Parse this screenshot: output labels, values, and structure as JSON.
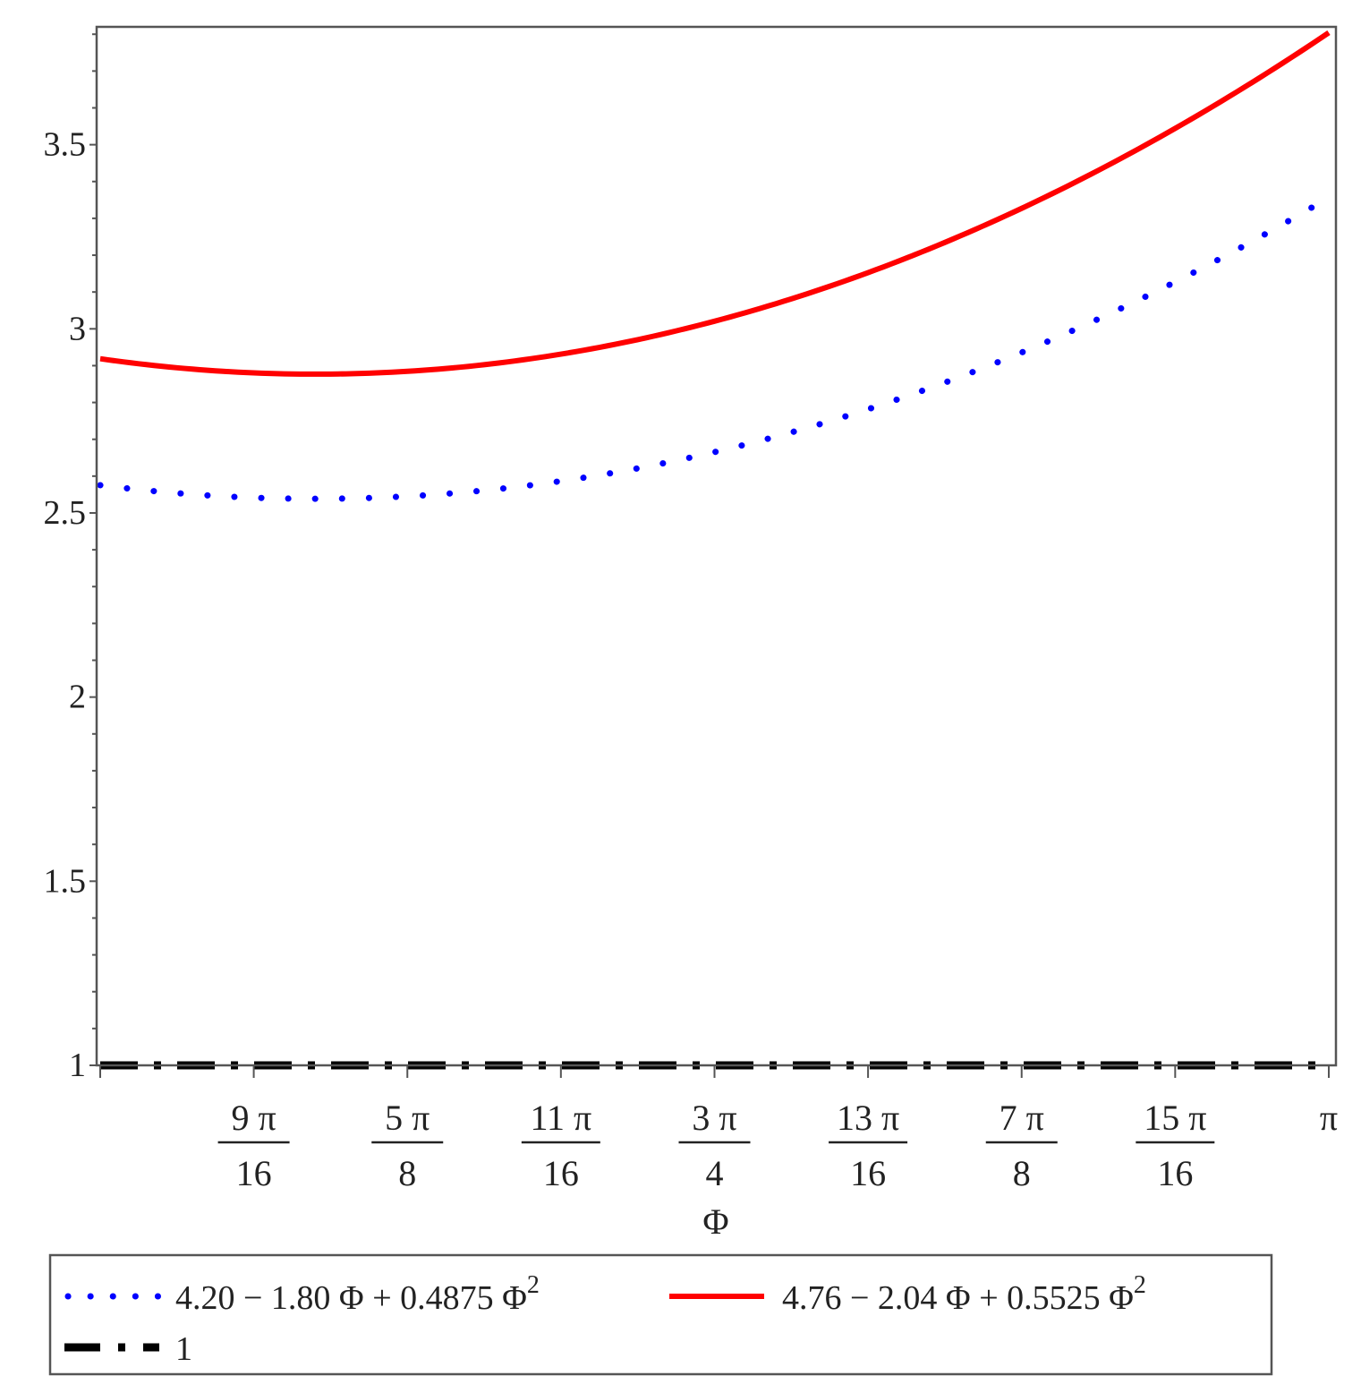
{
  "chart_data": {
    "type": "line",
    "xlabel": "Φ",
    "ylabel": "",
    "xlim": [
      1.5708,
      3.1416
    ],
    "ylim": [
      1,
      3.82
    ],
    "x_ticks": [
      {
        "num": "9 π",
        "den": "16",
        "value": 1.7671
      },
      {
        "num": "5 π",
        "den": "8",
        "value": 1.9635
      },
      {
        "num": "11 π",
        "den": "16",
        "value": 2.1598
      },
      {
        "num": "3 π",
        "den": "4",
        "value": 2.3562
      },
      {
        "num": "13 π",
        "den": "16",
        "value": 2.5525
      },
      {
        "num": "7 π",
        "den": "8",
        "value": 2.7489
      },
      {
        "num": "15 π",
        "den": "16",
        "value": 2.9452
      },
      {
        "num": "π",
        "den": "",
        "value": 3.1416
      }
    ],
    "y_ticks": [
      {
        "label": "1",
        "value": 1
      },
      {
        "label": "1.5",
        "value": 1.5
      },
      {
        "label": "2",
        "value": 2
      },
      {
        "label": "2.5",
        "value": 2.5
      },
      {
        "label": "3",
        "value": 3
      },
      {
        "label": "3.5",
        "value": 3.5
      }
    ],
    "series": [
      {
        "name": "4.20 − 1.80 Φ + 0.4875 Φ²",
        "label_main": "4.20 − 1.80 Φ + 0.4875 Φ",
        "label_sup": "2",
        "coefficients": [
          4.2,
          -1.8,
          0.4875
        ],
        "color": "#0000ff",
        "style": "dotted"
      },
      {
        "name": "4.76 − 2.04 Φ + 0.5525 Φ²",
        "label_main": "4.76 − 2.04 Φ + 0.5525 Φ",
        "label_sup": "2",
        "coefficients": [
          4.76,
          -2.04,
          0.5525
        ],
        "color": "#ff0000",
        "style": "solid"
      },
      {
        "name": "1",
        "label_main": "1",
        "label_sup": "",
        "coefficients": [
          1,
          0,
          0
        ],
        "color": "#000000",
        "style": "dashdot"
      }
    ],
    "legend_position": "bottom",
    "grid": false
  }
}
